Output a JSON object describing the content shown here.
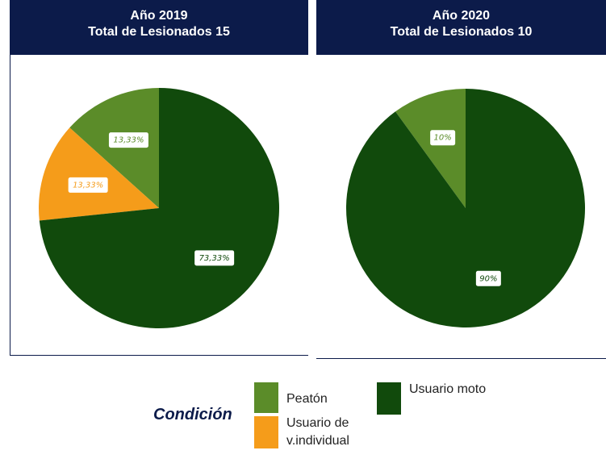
{
  "chart_data": [
    {
      "type": "pie",
      "title": "Año 2019",
      "subtitle": "Total de Lesionados 15",
      "categories": [
        "Peatón",
        "Usuario de v.individual",
        "Usuario moto"
      ],
      "values": [
        13.33,
        13.33,
        73.33
      ],
      "value_labels": [
        "13,33%",
        "13,33%",
        "73,33%"
      ],
      "colors": [
        "#5b8c29",
        "#f59c1a",
        "#114a0c"
      ],
      "legend_title": "Condición"
    },
    {
      "type": "pie",
      "title": "Año 2020",
      "subtitle": "Total de Lesionados 10",
      "categories": [
        "Peatón",
        "Usuario moto"
      ],
      "values": [
        10,
        90
      ],
      "value_labels": [
        "10%",
        "90%"
      ],
      "colors": [
        "#5b8c29",
        "#114a0c"
      ]
    }
  ]
}
